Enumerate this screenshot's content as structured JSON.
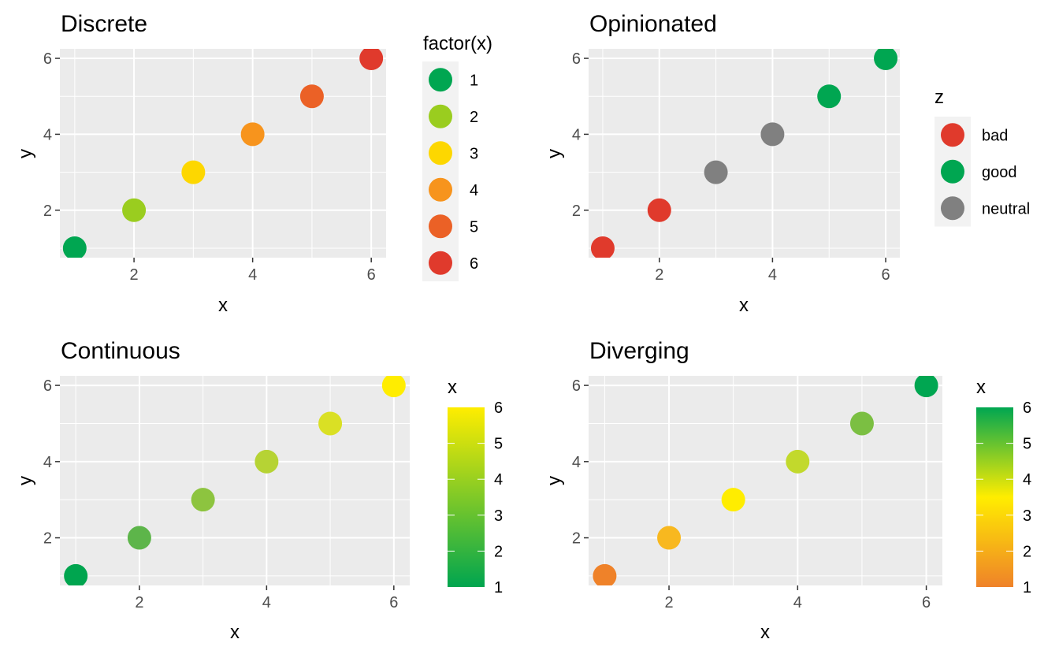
{
  "chart_data": [
    {
      "type": "scatter",
      "title": "Discrete",
      "xlabel": "x",
      "ylabel": "y",
      "xlim": [
        0.75,
        6.25
      ],
      "ylim": [
        0.75,
        6.25
      ],
      "xticks": [
        2,
        4,
        6
      ],
      "yticks": [
        2,
        4,
        6
      ],
      "grid": true,
      "x": [
        1,
        2,
        3,
        4,
        5,
        6
      ],
      "y": [
        1,
        2,
        3,
        4,
        5,
        6
      ],
      "point_colors": [
        "#00A651",
        "#9ACD1F",
        "#FDD700",
        "#F7941D",
        "#EB6126",
        "#E03A2C"
      ],
      "legend": {
        "kind": "discrete",
        "title": "factor(x)",
        "placement": "right",
        "entries": [
          {
            "label": "1",
            "color": "#00A651"
          },
          {
            "label": "2",
            "color": "#9ACD1F"
          },
          {
            "label": "3",
            "color": "#FDD700"
          },
          {
            "label": "4",
            "color": "#F7941D"
          },
          {
            "label": "5",
            "color": "#EB6126"
          },
          {
            "label": "6",
            "color": "#E03A2C"
          }
        ]
      }
    },
    {
      "type": "scatter",
      "title": "Opinionated",
      "xlabel": "x",
      "ylabel": "y",
      "xlim": [
        0.75,
        6.25
      ],
      "ylim": [
        0.75,
        6.25
      ],
      "xticks": [
        2,
        4,
        6
      ],
      "yticks": [
        2,
        4,
        6
      ],
      "grid": true,
      "x": [
        1,
        2,
        3,
        4,
        5,
        6
      ],
      "y": [
        1,
        2,
        3,
        4,
        5,
        6
      ],
      "z": [
        "bad",
        "bad",
        "neutral",
        "neutral",
        "good",
        "good"
      ],
      "point_colors": [
        "#E03A2C",
        "#E03A2C",
        "#808080",
        "#808080",
        "#00A651",
        "#00A651"
      ],
      "legend": {
        "kind": "discrete",
        "title": "z",
        "placement": "right",
        "entries": [
          {
            "label": "bad",
            "color": "#E03A2C"
          },
          {
            "label": "good",
            "color": "#00A651"
          },
          {
            "label": "neutral",
            "color": "#808080"
          }
        ]
      }
    },
    {
      "type": "scatter",
      "title": "Continuous",
      "xlabel": "x",
      "ylabel": "y",
      "xlim": [
        0.75,
        6.25
      ],
      "ylim": [
        0.75,
        6.25
      ],
      "xticks": [
        2,
        4,
        6
      ],
      "yticks": [
        2,
        4,
        6
      ],
      "grid": true,
      "x": [
        1,
        2,
        3,
        4,
        5,
        6
      ],
      "y": [
        1,
        2,
        3,
        4,
        5,
        6
      ],
      "point_colors": [
        "#00A54F",
        "#5DB54A",
        "#8DC43F",
        "#B6D334",
        "#DAE024",
        "#FFED00"
      ],
      "legend": {
        "kind": "colorbar",
        "title": "x",
        "placement": "right",
        "range": [
          1,
          6
        ],
        "ticks": [
          1,
          2,
          3,
          4,
          5,
          6
        ],
        "gradient": [
          "#00A54F",
          "#FFED00"
        ]
      }
    },
    {
      "type": "scatter",
      "title": "Diverging",
      "xlabel": "x",
      "ylabel": "y",
      "xlim": [
        0.75,
        6.25
      ],
      "ylim": [
        0.75,
        6.25
      ],
      "xticks": [
        2,
        4,
        6
      ],
      "yticks": [
        2,
        4,
        6
      ],
      "grid": true,
      "x": [
        1,
        2,
        3,
        4,
        5,
        6
      ],
      "y": [
        1,
        2,
        3,
        4,
        5,
        6
      ],
      "point_colors": [
        "#EF8229",
        "#F8B81F",
        "#FFED00",
        "#C2D92C",
        "#7BBF42",
        "#00A651"
      ],
      "legend": {
        "kind": "colorbar",
        "title": "x",
        "placement": "right",
        "range": [
          1,
          6
        ],
        "ticks": [
          1,
          2,
          3,
          4,
          5,
          6
        ],
        "gradient": [
          "#EF8229",
          "#FFED00",
          "#00A651"
        ]
      }
    }
  ]
}
